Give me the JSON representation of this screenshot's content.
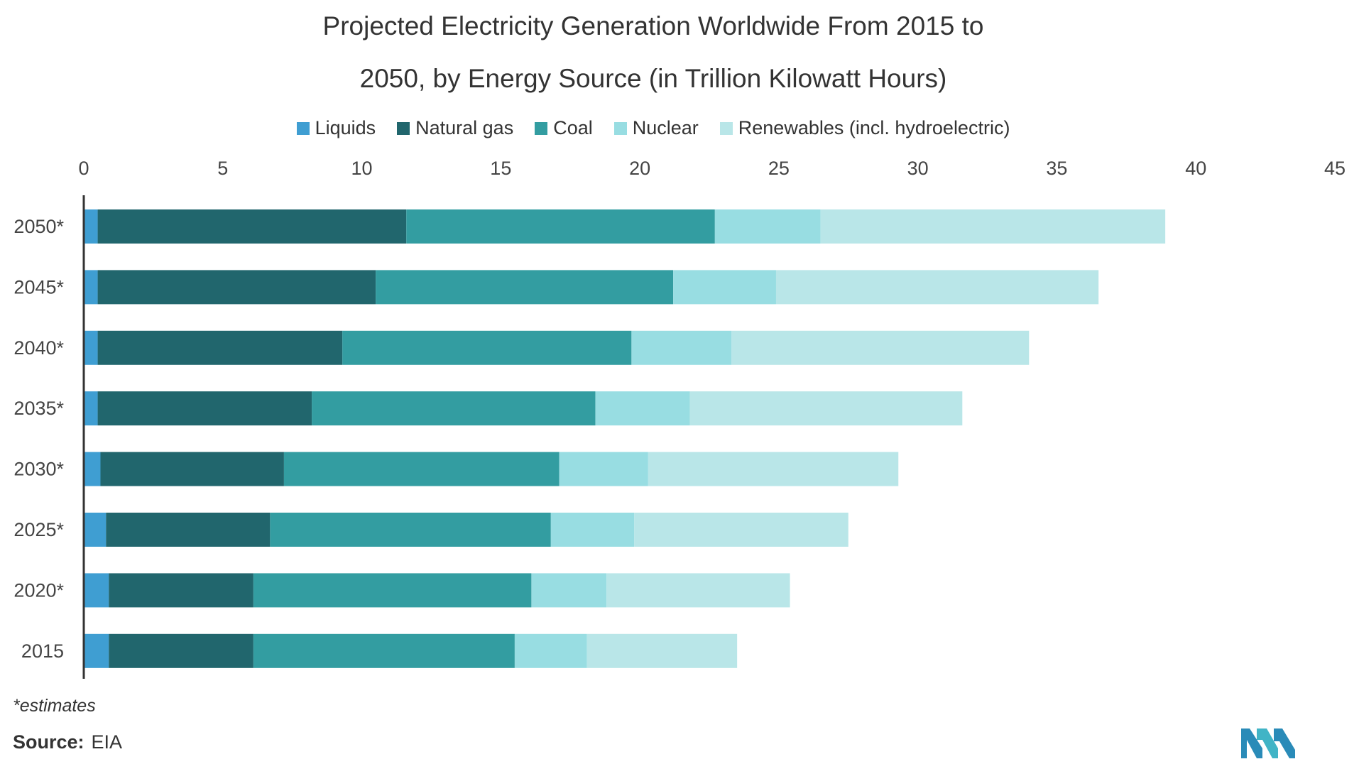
{
  "chart_data": {
    "type": "bar",
    "orientation": "horizontal",
    "stacked": true,
    "title_line1": "Projected Electricity Generation Worldwide From 2015 to",
    "title_line2": "2050, by Energy Source (in Trillion Kilowatt Hours)",
    "categories": [
      "2050*",
      "2045*",
      "2040*",
      "2035*",
      "2030*",
      "2025*",
      "2020*",
      "2015"
    ],
    "series": [
      {
        "name": "Liquids",
        "color": "#3f9ed2",
        "values": [
          0.5,
          0.5,
          0.5,
          0.5,
          0.6,
          0.8,
          0.9,
          0.9
        ]
      },
      {
        "name": "Natural gas",
        "color": "#21666d",
        "values": [
          11.1,
          10.0,
          8.8,
          7.7,
          6.6,
          5.9,
          5.2,
          5.2
        ]
      },
      {
        "name": "Coal",
        "color": "#339da1",
        "values": [
          11.1,
          10.7,
          10.4,
          10.2,
          9.9,
          10.1,
          10.0,
          9.4
        ]
      },
      {
        "name": "Nuclear",
        "color": "#98dde2",
        "values": [
          3.8,
          3.7,
          3.6,
          3.4,
          3.2,
          3.0,
          2.7,
          2.6
        ]
      },
      {
        "name": "Renewables (incl. hydroelectric)",
        "color": "#b9e6e8",
        "values": [
          12.4,
          11.6,
          10.7,
          9.8,
          9.0,
          7.7,
          6.6,
          5.4
        ]
      }
    ],
    "x_ticks": [
      "0",
      "5",
      "10",
      "15",
      "20",
      "25",
      "30",
      "35",
      "40",
      "45"
    ],
    "xlim": [
      0,
      45
    ],
    "legend": "top"
  },
  "footnote": "*estimates",
  "source_label": "Source:",
  "source_value": "EIA"
}
